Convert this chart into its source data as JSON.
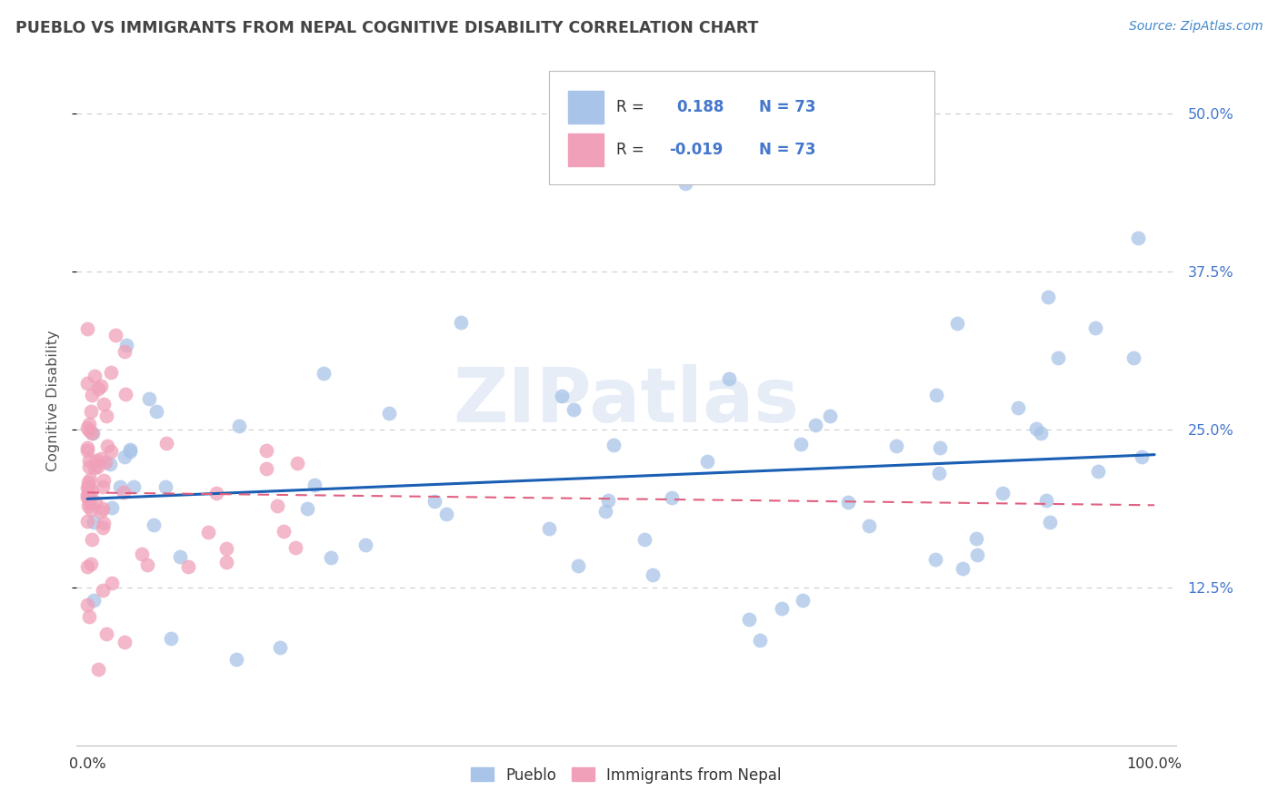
{
  "title": "PUEBLO VS IMMIGRANTS FROM NEPAL COGNITIVE DISABILITY CORRELATION CHART",
  "source": "Source: ZipAtlas.com",
  "ylabel": "Cognitive Disability",
  "yticks": [
    "12.5%",
    "25.0%",
    "37.5%",
    "50.0%"
  ],
  "ytick_vals": [
    0.125,
    0.25,
    0.375,
    0.5
  ],
  "pueblo_R": 0.188,
  "pueblo_N": 73,
  "nepal_R": -0.019,
  "nepal_N": 73,
  "pueblo_color": "#a8c4e8",
  "nepal_color": "#f0a0b8",
  "pueblo_line_color": "#1a5fb4",
  "nepal_line_color": "#e06080",
  "watermark_text": "ZIPatlas",
  "background_color": "#ffffff",
  "grid_color": "#cccccc",
  "title_color": "#444444",
  "legend_R1": "R =",
  "legend_V1": "0.188",
  "legend_N1": "N = 73",
  "legend_R2": "R =",
  "legend_V2": "-0.019",
  "legend_N2": "N = 73",
  "legend_label1": "Pueblo",
  "legend_label2": "Immigrants from Nepal"
}
